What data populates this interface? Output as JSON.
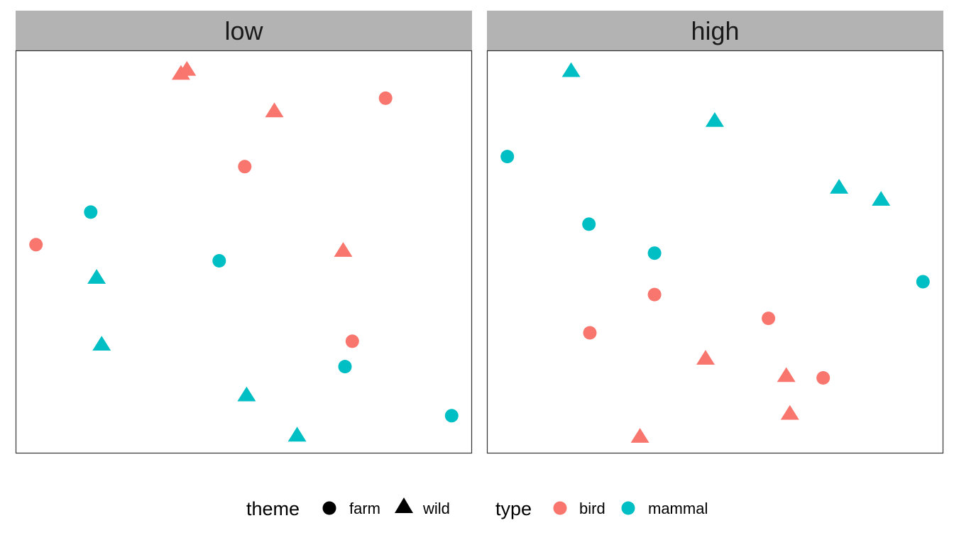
{
  "chart_data": {
    "type": "scatter",
    "facets": [
      {
        "label": "low",
        "points": [
          {
            "x": 0.375,
            "y": 0.955,
            "theme": "wild",
            "type": "bird"
          },
          {
            "x": 0.362,
            "y": 0.945,
            "theme": "wild",
            "type": "bird"
          },
          {
            "x": 0.567,
            "y": 0.852,
            "theme": "wild",
            "type": "bird"
          },
          {
            "x": 0.811,
            "y": 0.882,
            "theme": "farm",
            "type": "bird"
          },
          {
            "x": 0.502,
            "y": 0.712,
            "theme": "farm",
            "type": "bird"
          },
          {
            "x": 0.044,
            "y": 0.518,
            "theme": "farm",
            "type": "bird"
          },
          {
            "x": 0.718,
            "y": 0.505,
            "theme": "wild",
            "type": "bird"
          },
          {
            "x": 0.738,
            "y": 0.278,
            "theme": "farm",
            "type": "bird"
          },
          {
            "x": 0.164,
            "y": 0.599,
            "theme": "farm",
            "type": "mammal"
          },
          {
            "x": 0.177,
            "y": 0.438,
            "theme": "wild",
            "type": "mammal"
          },
          {
            "x": 0.446,
            "y": 0.478,
            "theme": "farm",
            "type": "mammal"
          },
          {
            "x": 0.188,
            "y": 0.272,
            "theme": "wild",
            "type": "mammal"
          },
          {
            "x": 0.722,
            "y": 0.215,
            "theme": "farm",
            "type": "mammal"
          },
          {
            "x": 0.506,
            "y": 0.146,
            "theme": "wild",
            "type": "mammal"
          },
          {
            "x": 0.617,
            "y": 0.046,
            "theme": "wild",
            "type": "mammal"
          },
          {
            "x": 0.956,
            "y": 0.093,
            "theme": "farm",
            "type": "mammal"
          }
        ]
      },
      {
        "label": "high",
        "points": [
          {
            "x": 0.184,
            "y": 0.952,
            "theme": "wild",
            "type": "mammal"
          },
          {
            "x": 0.499,
            "y": 0.828,
            "theme": "wild",
            "type": "mammal"
          },
          {
            "x": 0.044,
            "y": 0.737,
            "theme": "farm",
            "type": "mammal"
          },
          {
            "x": 0.772,
            "y": 0.662,
            "theme": "wild",
            "type": "mammal"
          },
          {
            "x": 0.864,
            "y": 0.632,
            "theme": "wild",
            "type": "mammal"
          },
          {
            "x": 0.223,
            "y": 0.569,
            "theme": "farm",
            "type": "mammal"
          },
          {
            "x": 0.367,
            "y": 0.497,
            "theme": "farm",
            "type": "mammal"
          },
          {
            "x": 0.956,
            "y": 0.426,
            "theme": "farm",
            "type": "mammal"
          },
          {
            "x": 0.367,
            "y": 0.394,
            "theme": "farm",
            "type": "bird"
          },
          {
            "x": 0.617,
            "y": 0.335,
            "theme": "farm",
            "type": "bird"
          },
          {
            "x": 0.225,
            "y": 0.299,
            "theme": "farm",
            "type": "bird"
          },
          {
            "x": 0.479,
            "y": 0.237,
            "theme": "wild",
            "type": "bird"
          },
          {
            "x": 0.656,
            "y": 0.194,
            "theme": "wild",
            "type": "bird"
          },
          {
            "x": 0.737,
            "y": 0.187,
            "theme": "farm",
            "type": "bird"
          },
          {
            "x": 0.664,
            "y": 0.1,
            "theme": "wild",
            "type": "bird"
          },
          {
            "x": 0.335,
            "y": 0.043,
            "theme": "wild",
            "type": "bird"
          }
        ]
      }
    ],
    "xlim": [
      0,
      1
    ],
    "ylim": [
      0,
      1
    ],
    "grid": false,
    "legend": {
      "placement": "bottom",
      "theme": {
        "title": "theme",
        "items": [
          {
            "label": "farm",
            "shape": "circle"
          },
          {
            "label": "wild",
            "shape": "triangle"
          }
        ]
      },
      "type": {
        "title": "type",
        "items": [
          {
            "label": "bird",
            "color": "#F8766D"
          },
          {
            "label": "mammal",
            "color": "#00BFC4"
          }
        ]
      }
    },
    "colors": {
      "bird": "#F8766D",
      "mammal": "#00BFC4",
      "strip": "#B3B3B3",
      "panel_border": "#333333"
    }
  }
}
